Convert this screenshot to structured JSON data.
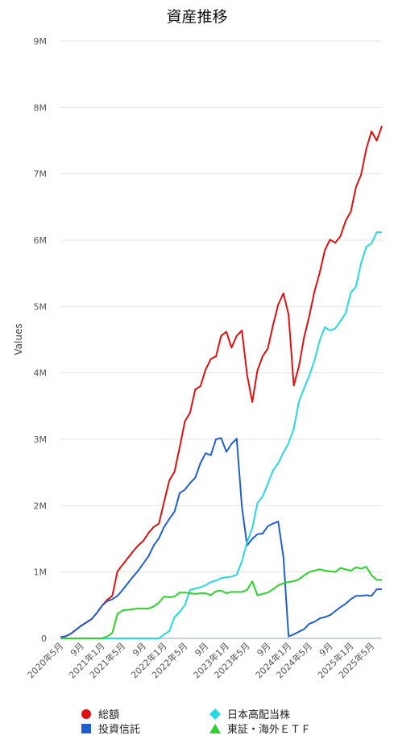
{
  "chart_data": {
    "type": "line",
    "title": "資産推移",
    "xlabel": "",
    "ylabel": "Values",
    "ylim": [
      0,
      9000000
    ],
    "yticks": [
      {
        "value": 0,
        "label": "0"
      },
      {
        "value": 1000000,
        "label": "1M"
      },
      {
        "value": 2000000,
        "label": "2M"
      },
      {
        "value": 3000000,
        "label": "3M"
      },
      {
        "value": 4000000,
        "label": "4M"
      },
      {
        "value": 5000000,
        "label": "5M"
      },
      {
        "value": 6000000,
        "label": "6M"
      },
      {
        "value": 7000000,
        "label": "7M"
      },
      {
        "value": 8000000,
        "label": "8M"
      },
      {
        "value": 9000000,
        "label": "9M"
      }
    ],
    "xticks": [
      {
        "index": 0,
        "label": "2020年5月"
      },
      {
        "index": 4,
        "label": "9月"
      },
      {
        "index": 8,
        "label": "2021年1月"
      },
      {
        "index": 12,
        "label": "2021年5月"
      },
      {
        "index": 16,
        "label": "9月"
      },
      {
        "index": 20,
        "label": "2022年1月"
      },
      {
        "index": 24,
        "label": "2022年5月"
      },
      {
        "index": 28,
        "label": "9月"
      },
      {
        "index": 32,
        "label": "2023年1月"
      },
      {
        "index": 36,
        "label": "2023年5月"
      },
      {
        "index": 40,
        "label": "9月"
      },
      {
        "index": 44,
        "label": "2024年1月"
      },
      {
        "index": 48,
        "label": "2024年5月"
      },
      {
        "index": 52,
        "label": "9月"
      },
      {
        "index": 56,
        "label": "2025年1月"
      },
      {
        "index": 60,
        "label": "2025年5月"
      }
    ],
    "grid": true,
    "legend_position": "bottom",
    "series": [
      {
        "name": "総額",
        "color": "#e01010",
        "marker": "circle",
        "values": [
          20000,
          30000,
          70000,
          130000,
          190000,
          240000,
          290000,
          380000,
          490000,
          580000,
          640000,
          1010000,
          1110000,
          1210000,
          1310000,
          1400000,
          1470000,
          1590000,
          1680000,
          1730000,
          2060000,
          2380000,
          2510000,
          2880000,
          3270000,
          3400000,
          3750000,
          3800000,
          4050000,
          4210000,
          4250000,
          4560000,
          4620000,
          4380000,
          4560000,
          4640000,
          3970000,
          3560000,
          4040000,
          4250000,
          4370000,
          4720000,
          5030000,
          5200000,
          4880000,
          3810000,
          4100000,
          4540000,
          4860000,
          5230000,
          5510000,
          5850000,
          6010000,
          5960000,
          6060000,
          6290000,
          6430000,
          6800000,
          6990000,
          7380000,
          7640000,
          7500000,
          7720000
        ]
      },
      {
        "name": "投資信託",
        "color": "#1f5fd0",
        "marker": "square",
        "values": [
          20000,
          30000,
          70000,
          130000,
          190000,
          240000,
          290000,
          380000,
          490000,
          560000,
          590000,
          640000,
          730000,
          830000,
          930000,
          1020000,
          1130000,
          1240000,
          1400000,
          1510000,
          1680000,
          1800000,
          1910000,
          2190000,
          2240000,
          2340000,
          2420000,
          2640000,
          2790000,
          2760000,
          3000000,
          3020000,
          2810000,
          2930000,
          3010000,
          1980000,
          1400000,
          1500000,
          1570000,
          1580000,
          1690000,
          1730000,
          1760000,
          1230000,
          30000,
          60000,
          100000,
          140000,
          220000,
          250000,
          300000,
          320000,
          350000,
          410000,
          470000,
          520000,
          590000,
          640000,
          640000,
          650000,
          640000,
          740000,
          740000
        ]
      },
      {
        "name": "日本高配当株",
        "color": "#26d9e2",
        "marker": "diamond",
        "values": [
          0,
          0,
          0,
          0,
          0,
          0,
          0,
          0,
          0,
          0,
          0,
          0,
          0,
          0,
          0,
          0,
          0,
          0,
          0,
          0,
          60000,
          110000,
          320000,
          400000,
          500000,
          730000,
          750000,
          770000,
          800000,
          850000,
          870000,
          910000,
          920000,
          930000,
          960000,
          1160000,
          1450000,
          1660000,
          2040000,
          2140000,
          2330000,
          2530000,
          2640000,
          2800000,
          2940000,
          3160000,
          3570000,
          3770000,
          3960000,
          4190000,
          4490000,
          4690000,
          4640000,
          4670000,
          4780000,
          4900000,
          5210000,
          5300000,
          5660000,
          5900000,
          5950000,
          6120000,
          6120000
        ]
      },
      {
        "name": "東証・海外ＥＴＦ",
        "color": "#2ad42a",
        "marker": "triangle",
        "values": [
          0,
          0,
          0,
          0,
          0,
          0,
          0,
          0,
          0,
          30000,
          80000,
          370000,
          420000,
          430000,
          440000,
          450000,
          450000,
          450000,
          480000,
          540000,
          630000,
          620000,
          630000,
          690000,
          690000,
          680000,
          670000,
          680000,
          680000,
          650000,
          710000,
          720000,
          680000,
          700000,
          700000,
          700000,
          730000,
          860000,
          650000,
          670000,
          690000,
          740000,
          800000,
          830000,
          850000,
          860000,
          890000,
          950000,
          1000000,
          1020000,
          1040000,
          1020000,
          1010000,
          1000000,
          1060000,
          1040000,
          1020000,
          1070000,
          1050000,
          1080000,
          950000,
          880000,
          880000
        ]
      }
    ]
  }
}
